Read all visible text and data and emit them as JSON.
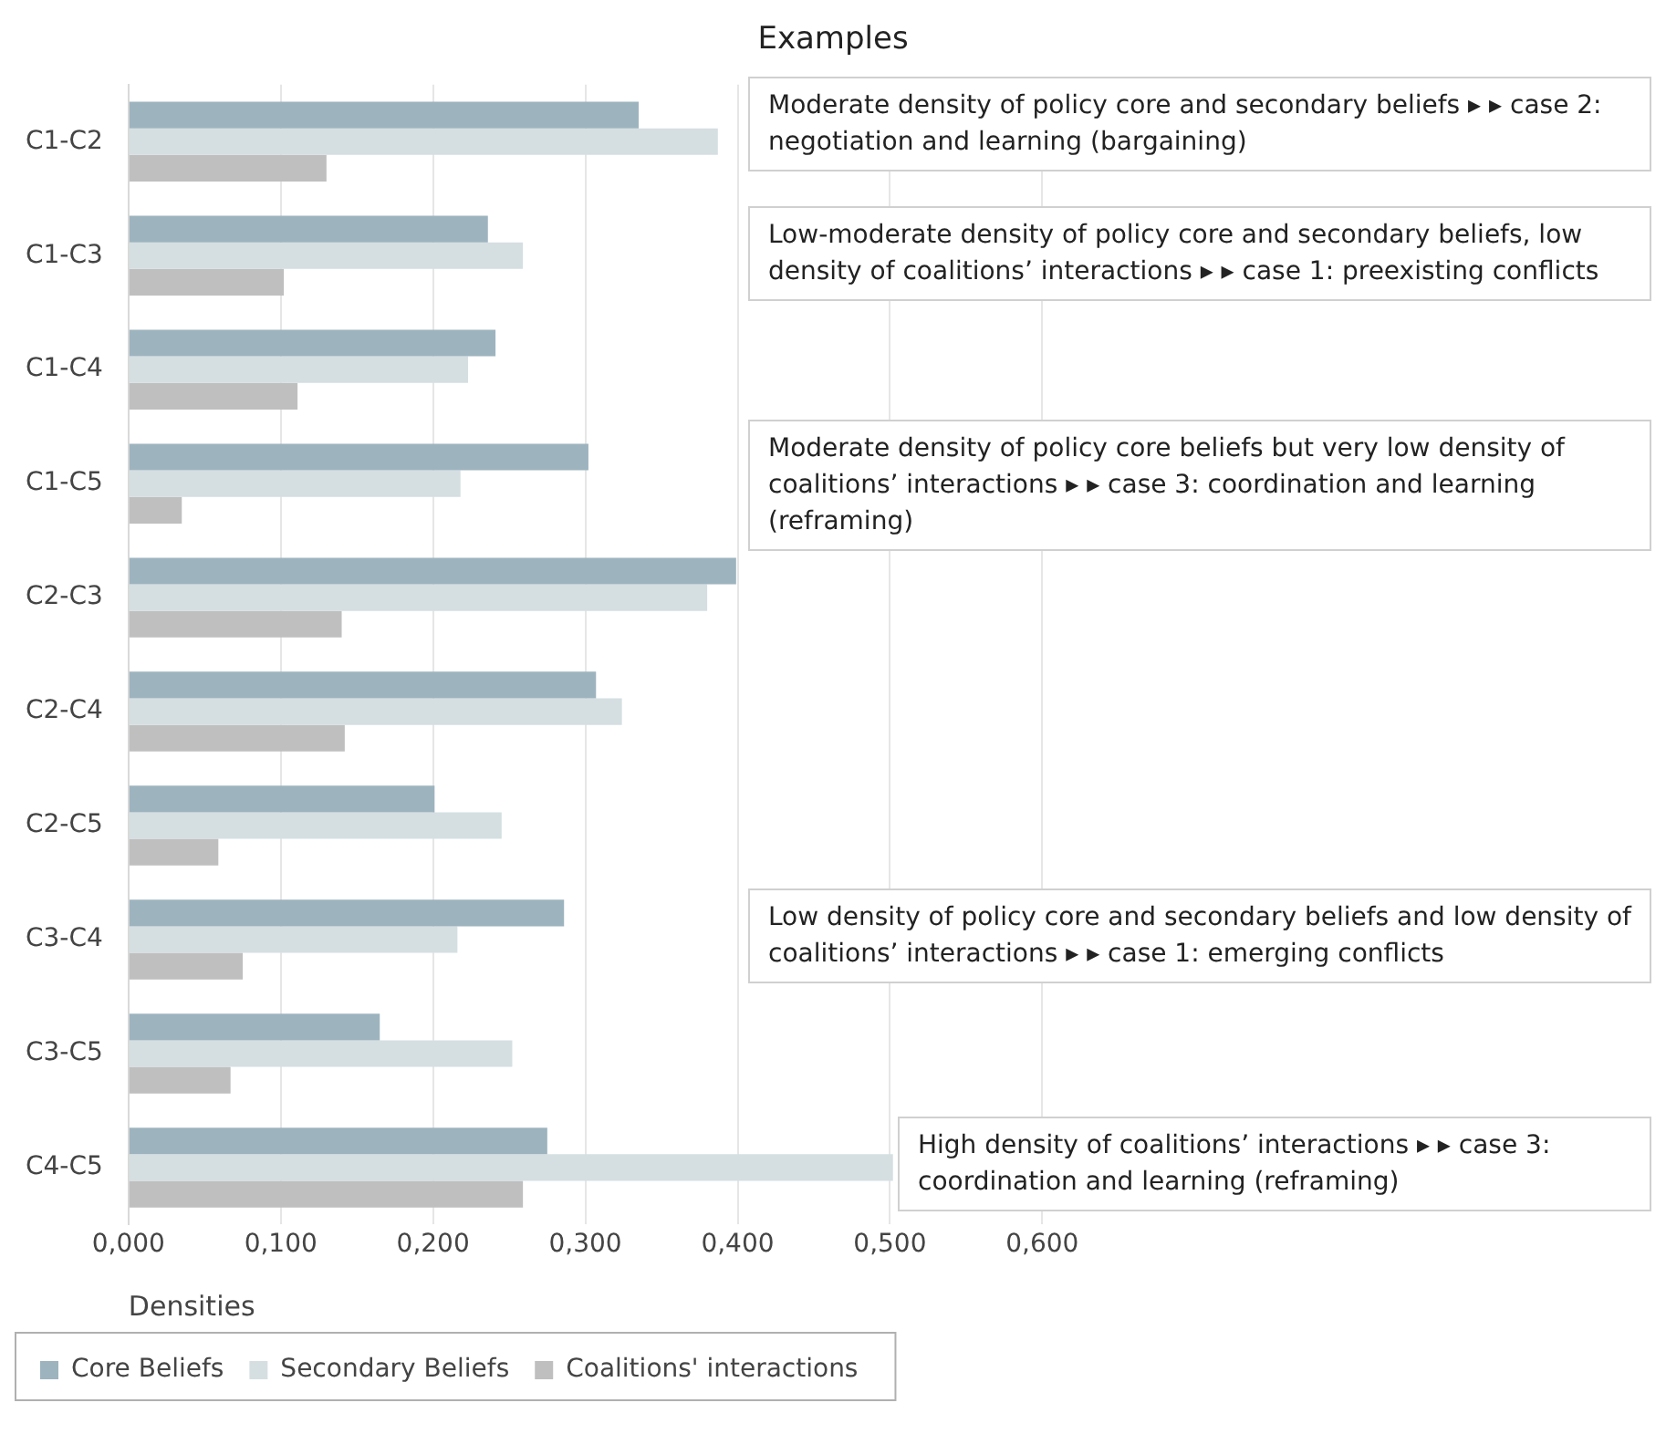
{
  "chart_data": {
    "type": "bar",
    "orientation": "horizontal",
    "title": "Examples",
    "xlabel": "Densities",
    "categories": [
      "C1-C2",
      "C1-C3",
      "C1-C4",
      "C1-C5",
      "C2-C3",
      "C2-C4",
      "C2-C5",
      "C3-C4",
      "C3-C5",
      "C4-C5"
    ],
    "series": [
      {
        "name": "Core Beliefs",
        "color": "#9db4bf",
        "values": [
          0.335,
          0.236,
          0.241,
          0.302,
          0.399,
          0.307,
          0.201,
          0.286,
          0.165,
          0.275
        ]
      },
      {
        "name": "Secondary Beliefs",
        "color": "#d5dfe1",
        "values": [
          0.387,
          0.259,
          0.223,
          0.218,
          0.38,
          0.324,
          0.245,
          0.216,
          0.252,
          0.502
        ]
      },
      {
        "name": "Coalitions' interactions",
        "color": "#bfbfbf",
        "values": [
          0.13,
          0.102,
          0.111,
          0.035,
          0.14,
          0.142,
          0.059,
          0.075,
          0.067,
          0.259
        ]
      }
    ],
    "xlim": [
      0,
      1.0
    ],
    "xticks": [
      {
        "value": 0,
        "label": "0,000"
      },
      {
        "value": 0.1,
        "label": "0,100"
      },
      {
        "value": 0.2,
        "label": "0,200"
      },
      {
        "value": 0.3,
        "label": "0,300"
      },
      {
        "value": 0.4,
        "label": "0,400"
      },
      {
        "value": 0.5,
        "label": "0,500"
      },
      {
        "value": 0.6,
        "label": "0,600"
      }
    ],
    "grid": "x",
    "legend": "bottom left",
    "annotations": [
      "Moderate density of policy core and secondary beliefs ▸ ▸ case 2: negotiation and learning (bargaining)",
      "Low-moderate density of policy core and secondary beliefs, low density of coalitions’ interactions ▸ ▸ case 1: preexisting conflicts",
      "Moderate density of policy core beliefs but very low density of coalitions’ interactions ▸ ▸ case 3: coordination and learning (reframing)",
      "Low density of policy core and secondary beliefs and low density of coalitions’ interactions ▸ ▸ case 1: emerging conflicts",
      "High density of coalitions’ interactions ▸ ▸ case 3: coordination and learning (reframing)"
    ]
  }
}
